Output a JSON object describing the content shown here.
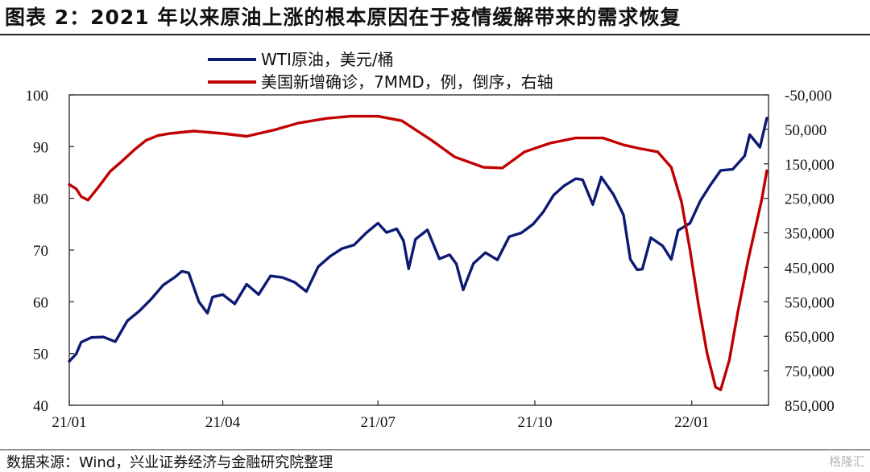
{
  "title": "图表 2：2021 年以来原油上涨的根本原因在于疫情缓解带来的需求恢复",
  "source": "数据来源：Wind，兴业证券经济与金融研究院整理",
  "watermark": "格隆汇",
  "chart_data": {
    "type": "line",
    "x_ticks": [
      "21/01",
      "21/04",
      "21/07",
      "21/10",
      "22/01"
    ],
    "x_range": [
      "2021-01-01",
      "2022-02-15"
    ],
    "left_axis": {
      "ticks": [
        "100",
        "90",
        "80",
        "70",
        "60",
        "50",
        "40"
      ],
      "range": [
        40,
        100
      ]
    },
    "right_axis": {
      "ticks": [
        "-50,000",
        "50,000",
        "150,000",
        "250,000",
        "350,000",
        "450,000",
        "550,000",
        "650,000",
        "750,000",
        "850,000"
      ],
      "range": [
        -50000,
        850000
      ],
      "inverted": true
    },
    "series": [
      {
        "name": "WTI原油，美元/桶",
        "axis": "left",
        "color": "#0d1a73",
        "points": [
          [
            "2021-01-01",
            48.5
          ],
          [
            "2021-01-05",
            49.9
          ],
          [
            "2021-01-08",
            52.2
          ],
          [
            "2021-01-14",
            53.1
          ],
          [
            "2021-01-21",
            53.2
          ],
          [
            "2021-01-28",
            52.3
          ],
          [
            "2021-02-04",
            56.3
          ],
          [
            "2021-02-11",
            58.2
          ],
          [
            "2021-02-18",
            60.5
          ],
          [
            "2021-02-25",
            63.2
          ],
          [
            "2021-03-04",
            64.8
          ],
          [
            "2021-03-08",
            65.9
          ],
          [
            "2021-03-12",
            65.6
          ],
          [
            "2021-03-18",
            60.0
          ],
          [
            "2021-03-23",
            57.8
          ],
          [
            "2021-03-26",
            60.9
          ],
          [
            "2021-04-01",
            61.4
          ],
          [
            "2021-04-08",
            59.6
          ],
          [
            "2021-04-15",
            63.4
          ],
          [
            "2021-04-22",
            61.4
          ],
          [
            "2021-04-29",
            65.0
          ],
          [
            "2021-05-06",
            64.7
          ],
          [
            "2021-05-13",
            63.8
          ],
          [
            "2021-05-20",
            62.0
          ],
          [
            "2021-05-27",
            66.8
          ],
          [
            "2021-06-03",
            68.8
          ],
          [
            "2021-06-10",
            70.3
          ],
          [
            "2021-06-17",
            71.0
          ],
          [
            "2021-06-24",
            73.3
          ],
          [
            "2021-07-01",
            75.2
          ],
          [
            "2021-07-06",
            73.4
          ],
          [
            "2021-07-12",
            74.1
          ],
          [
            "2021-07-16",
            71.8
          ],
          [
            "2021-07-19",
            66.4
          ],
          [
            "2021-07-23",
            72.1
          ],
          [
            "2021-07-30",
            73.9
          ],
          [
            "2021-08-06",
            68.3
          ],
          [
            "2021-08-12",
            69.1
          ],
          [
            "2021-08-16",
            67.3
          ],
          [
            "2021-08-20",
            62.3
          ],
          [
            "2021-08-26",
            67.4
          ],
          [
            "2021-09-02",
            69.5
          ],
          [
            "2021-09-09",
            68.1
          ],
          [
            "2021-09-16",
            72.6
          ],
          [
            "2021-09-23",
            73.3
          ],
          [
            "2021-09-30",
            75.0
          ],
          [
            "2021-10-06",
            77.4
          ],
          [
            "2021-10-12",
            80.6
          ],
          [
            "2021-10-18",
            82.4
          ],
          [
            "2021-10-25",
            83.8
          ],
          [
            "2021-10-29",
            83.6
          ],
          [
            "2021-11-04",
            78.8
          ],
          [
            "2021-11-09",
            84.1
          ],
          [
            "2021-11-16",
            80.8
          ],
          [
            "2021-11-22",
            76.8
          ],
          [
            "2021-11-26",
            68.2
          ],
          [
            "2021-11-30",
            66.2
          ],
          [
            "2021-12-03",
            66.3
          ],
          [
            "2021-12-08",
            72.4
          ],
          [
            "2021-12-15",
            70.8
          ],
          [
            "2021-12-20",
            68.2
          ],
          [
            "2021-12-24",
            73.8
          ],
          [
            "2021-12-31",
            75.2
          ],
          [
            "2022-01-06",
            79.5
          ],
          [
            "2022-01-12",
            82.6
          ],
          [
            "2022-01-18",
            85.4
          ],
          [
            "2022-01-25",
            85.6
          ],
          [
            "2022-02-01",
            88.2
          ],
          [
            "2022-02-04",
            92.3
          ],
          [
            "2022-02-10",
            89.9
          ],
          [
            "2022-02-14",
            95.5
          ]
        ]
      },
      {
        "name": "美国新增确诊，7MMD，例，倒序，右轴",
        "axis": "right",
        "color": "#c00000",
        "points": [
          [
            "2021-01-01",
            210000
          ],
          [
            "2021-01-05",
            222000
          ],
          [
            "2021-01-08",
            245000
          ],
          [
            "2021-01-12",
            255000
          ],
          [
            "2021-01-18",
            218000
          ],
          [
            "2021-01-25",
            172000
          ],
          [
            "2021-02-01",
            142000
          ],
          [
            "2021-02-08",
            110000
          ],
          [
            "2021-02-15",
            82000
          ],
          [
            "2021-02-22",
            68000
          ],
          [
            "2021-03-01",
            62000
          ],
          [
            "2021-03-15",
            55000
          ],
          [
            "2021-04-01",
            62000
          ],
          [
            "2021-04-15",
            70000
          ],
          [
            "2021-05-01",
            52000
          ],
          [
            "2021-05-15",
            32000
          ],
          [
            "2021-06-01",
            18000
          ],
          [
            "2021-06-15",
            12000
          ],
          [
            "2021-07-01",
            12000
          ],
          [
            "2021-07-15",
            25000
          ],
          [
            "2021-08-01",
            80000
          ],
          [
            "2021-08-15",
            130000
          ],
          [
            "2021-09-01",
            160000
          ],
          [
            "2021-09-12",
            162000
          ],
          [
            "2021-09-25",
            115000
          ],
          [
            "2021-10-10",
            90000
          ],
          [
            "2021-10-25",
            75000
          ],
          [
            "2021-11-10",
            75000
          ],
          [
            "2021-11-22",
            95000
          ],
          [
            "2021-12-01",
            105000
          ],
          [
            "2021-12-12",
            115000
          ],
          [
            "2021-12-20",
            160000
          ],
          [
            "2021-12-26",
            260000
          ],
          [
            "2021-12-31",
            400000
          ],
          [
            "2022-01-05",
            560000
          ],
          [
            "2022-01-10",
            700000
          ],
          [
            "2022-01-15",
            798000
          ],
          [
            "2022-01-18",
            805000
          ],
          [
            "2022-01-23",
            720000
          ],
          [
            "2022-01-28",
            580000
          ],
          [
            "2022-02-03",
            430000
          ],
          [
            "2022-02-08",
            320000
          ],
          [
            "2022-02-11",
            255000
          ],
          [
            "2022-02-14",
            170000
          ]
        ]
      }
    ]
  }
}
